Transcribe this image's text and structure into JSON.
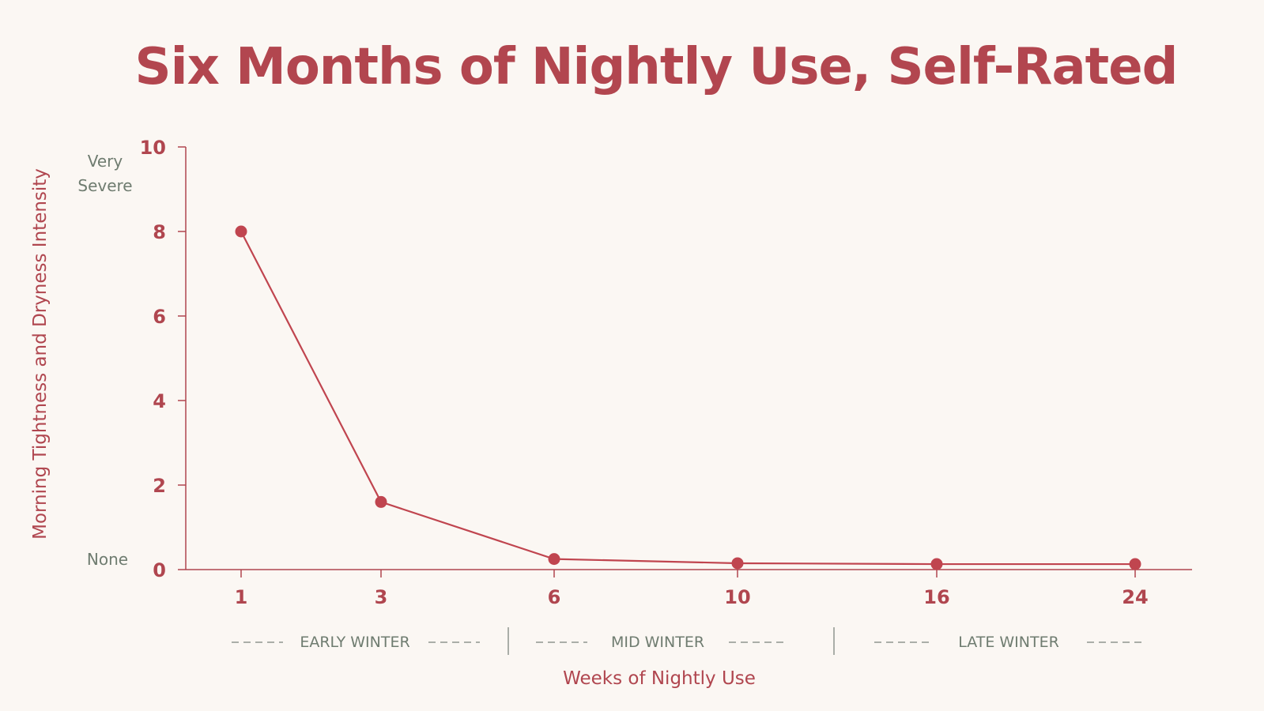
{
  "chart_data": {
    "type": "line",
    "title": "Six Months of Nightly Use, Self-Rated",
    "xlabel": "Weeks of Nightly Use",
    "ylabel": "Morning Tightness and Dryness Intensity",
    "x": [
      1,
      3,
      6,
      10,
      16,
      24
    ],
    "x_tick_labels": [
      "1",
      "3",
      "6",
      "10",
      "16",
      "24"
    ],
    "series": [
      {
        "values": [
          8,
          1.6,
          0.25,
          0.15,
          0.13,
          0.13
        ]
      }
    ],
    "ylim": [
      0,
      10
    ],
    "y_ticks": [
      0,
      2,
      4,
      6,
      8,
      10
    ],
    "y_tick_labels": [
      "0",
      "2",
      "4",
      "6",
      "8",
      "10"
    ],
    "y_anchor_labels": {
      "top": [
        "Very",
        "Severe"
      ],
      "bottom": "None"
    },
    "season_bands": [
      "EARLY WINTER",
      "MID WINTER",
      "LATE WINTER"
    ],
    "grid": false,
    "colors": {
      "series": "#c0454f",
      "text": "#b0464f",
      "muted": "#6f7c70",
      "background": "#fbf7f3"
    }
  }
}
